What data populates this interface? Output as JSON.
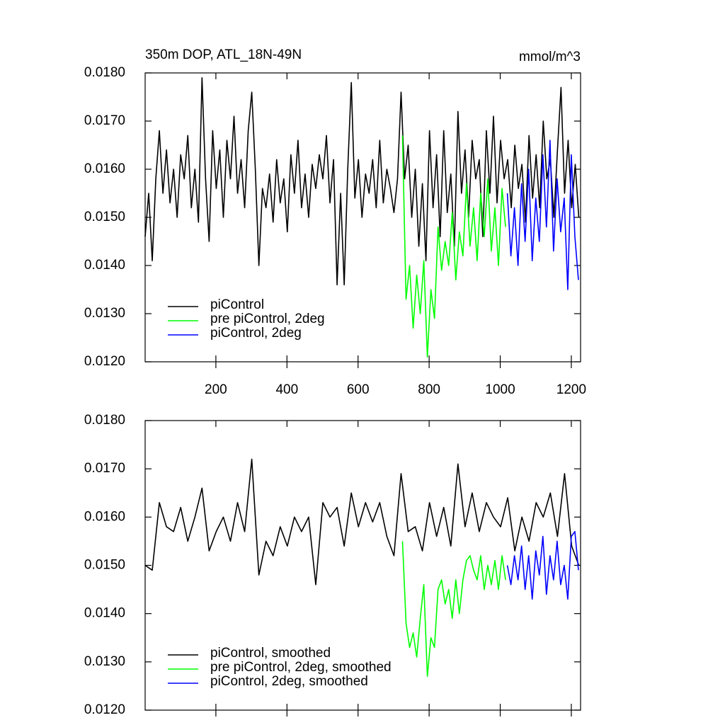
{
  "chart_data": [
    {
      "type": "line",
      "title": "350m DOP, ATL_18N-49N",
      "units_label": "mmol/m^3",
      "xlim": [
        1,
        1226
      ],
      "ylim": [
        0.012,
        0.018
      ],
      "xticks": [
        200,
        400,
        600,
        800,
        1000,
        1200
      ],
      "xtick_labels": true,
      "yticks": [
        {
          "value": 0.012,
          "label": "0.0120"
        },
        {
          "value": 0.013,
          "label": "0.0130"
        },
        {
          "value": 0.014,
          "label": "0.0140"
        },
        {
          "value": 0.015,
          "label": "0.0150"
        },
        {
          "value": 0.016,
          "label": "0.0160"
        },
        {
          "value": 0.017,
          "label": "0.0170"
        },
        {
          "value": 0.018,
          "label": "0.0180"
        }
      ],
      "legend": "lower left",
      "series": [
        {
          "name": "piControl",
          "color": "#000000",
          "x": [
            1,
            11,
            21,
            31,
            41,
            51,
            61,
            71,
            81,
            91,
            101,
            111,
            121,
            131,
            141,
            151,
            161,
            171,
            181,
            191,
            201,
            211,
            221,
            231,
            241,
            251,
            261,
            271,
            281,
            291,
            301,
            311,
            321,
            331,
            341,
            351,
            361,
            371,
            381,
            391,
            401,
            411,
            421,
            431,
            441,
            451,
            461,
            471,
            481,
            491,
            501,
            511,
            521,
            531,
            541,
            551,
            561,
            571,
            581,
            591,
            601,
            611,
            621,
            631,
            641,
            651,
            661,
            671,
            681,
            691,
            701,
            711,
            721,
            731,
            741,
            751,
            761,
            771,
            781,
            791,
            801,
            811,
            821,
            831,
            841,
            851,
            861,
            871,
            881,
            891,
            901,
            911,
            921,
            931,
            941,
            951,
            961,
            971,
            981,
            991,
            1001,
            1011,
            1021,
            1031,
            1041,
            1051,
            1061,
            1071,
            1081,
            1091,
            1101,
            1111,
            1121,
            1131,
            1141,
            1151,
            1161,
            1171,
            1181,
            1191,
            1201,
            1211,
            1221
          ],
          "values": [
            0.0146,
            0.0155,
            0.0141,
            0.0158,
            0.0168,
            0.0155,
            0.0164,
            0.0153,
            0.016,
            0.015,
            0.0163,
            0.0158,
            0.0167,
            0.0152,
            0.016,
            0.0149,
            0.0179,
            0.0158,
            0.0145,
            0.0168,
            0.0156,
            0.0164,
            0.015,
            0.0166,
            0.0158,
            0.0171,
            0.0155,
            0.0162,
            0.0152,
            0.0168,
            0.0176,
            0.016,
            0.014,
            0.0156,
            0.0152,
            0.0159,
            0.0149,
            0.0162,
            0.0153,
            0.0158,
            0.0147,
            0.0163,
            0.0155,
            0.0166,
            0.0152,
            0.0159,
            0.015,
            0.0161,
            0.0156,
            0.0163,
            0.0158,
            0.0167,
            0.0153,
            0.0162,
            0.0136,
            0.0155,
            0.0136,
            0.016,
            0.0178,
            0.0154,
            0.0162,
            0.015,
            0.0159,
            0.0155,
            0.0162,
            0.0152,
            0.0166,
            0.0153,
            0.016,
            0.0156,
            0.0151,
            0.0158,
            0.0176,
            0.0158,
            0.0165,
            0.015,
            0.016,
            0.0144,
            0.0157,
            0.0141,
            0.0168,
            0.0152,
            0.0163,
            0.0146,
            0.0168,
            0.0151,
            0.0159,
            0.0144,
            0.0172,
            0.0155,
            0.0164,
            0.015,
            0.0166,
            0.0158,
            0.0162,
            0.0146,
            0.0168,
            0.0155,
            0.0171,
            0.0153,
            0.0166,
            0.0158,
            0.0162,
            0.0152,
            0.0165,
            0.0156,
            0.0161,
            0.0149,
            0.0167,
            0.0154,
            0.0163,
            0.0152,
            0.017,
            0.0158,
            0.0162,
            0.015,
            0.0164,
            0.0177,
            0.0155,
            0.0166,
            0.0152,
            0.0161,
            0.015
          ]
        },
        {
          "name": "pre piControl, 2deg",
          "color": "#00ff00",
          "x": [
            725,
            735,
            745,
            755,
            765,
            775,
            785,
            795,
            805,
            815,
            825,
            835,
            845,
            855,
            865,
            875,
            885,
            895,
            905,
            915,
            925,
            935,
            945,
            955,
            965,
            975,
            985,
            995,
            1005,
            1015
          ],
          "values": [
            0.0167,
            0.0133,
            0.014,
            0.0127,
            0.0138,
            0.013,
            0.0141,
            0.0121,
            0.0135,
            0.0129,
            0.0148,
            0.0139,
            0.0145,
            0.014,
            0.0151,
            0.0137,
            0.0147,
            0.0142,
            0.0157,
            0.0144,
            0.0152,
            0.0141,
            0.0155,
            0.0146,
            0.0158,
            0.0143,
            0.0152,
            0.014,
            0.0156,
            0.0148
          ]
        },
        {
          "name": "piControl, 2deg",
          "color": "#0000ff",
          "x": [
            1020,
            1030,
            1040,
            1050,
            1060,
            1070,
            1080,
            1090,
            1100,
            1110,
            1120,
            1130,
            1140,
            1150,
            1160,
            1170,
            1180,
            1190,
            1200,
            1210,
            1220
          ],
          "values": [
            0.0155,
            0.0142,
            0.0152,
            0.014,
            0.0157,
            0.0145,
            0.016,
            0.0141,
            0.0154,
            0.0145,
            0.0163,
            0.0148,
            0.0166,
            0.0143,
            0.0158,
            0.0147,
            0.0154,
            0.0135,
            0.0163,
            0.0146,
            0.0137
          ]
        }
      ]
    },
    {
      "type": "line",
      "xlim": [
        1,
        1226
      ],
      "ylim": [
        0.012,
        0.018
      ],
      "xticks": [
        200,
        400,
        600,
        800,
        1000,
        1200
      ],
      "xtick_labels": false,
      "yticks": [
        {
          "value": 0.012,
          "label": "0.0120"
        },
        {
          "value": 0.013,
          "label": "0.0130"
        },
        {
          "value": 0.014,
          "label": "0.0140"
        },
        {
          "value": 0.015,
          "label": "0.0150"
        },
        {
          "value": 0.016,
          "label": "0.0160"
        },
        {
          "value": 0.017,
          "label": "0.0170"
        },
        {
          "value": 0.018,
          "label": "0.0180"
        }
      ],
      "legend": "lower left",
      "series": [
        {
          "name": "piControl, smoothed",
          "color": "#000000",
          "x": [
            1,
            21,
            41,
            61,
            81,
            101,
            121,
            141,
            161,
            181,
            201,
            221,
            241,
            261,
            281,
            301,
            321,
            341,
            361,
            381,
            401,
            421,
            441,
            461,
            481,
            501,
            521,
            541,
            561,
            581,
            601,
            621,
            641,
            661,
            681,
            701,
            721,
            741,
            761,
            781,
            801,
            821,
            841,
            861,
            881,
            901,
            921,
            941,
            961,
            981,
            1001,
            1021,
            1041,
            1061,
            1081,
            1101,
            1121,
            1141,
            1161,
            1181,
            1201,
            1221
          ],
          "values": [
            0.015,
            0.0149,
            0.0163,
            0.0158,
            0.0157,
            0.0162,
            0.0155,
            0.016,
            0.0166,
            0.0153,
            0.0157,
            0.016,
            0.0155,
            0.0163,
            0.0157,
            0.0172,
            0.0148,
            0.0155,
            0.0152,
            0.0158,
            0.0154,
            0.016,
            0.0157,
            0.016,
            0.0146,
            0.0163,
            0.016,
            0.0162,
            0.0154,
            0.0165,
            0.0158,
            0.0163,
            0.0159,
            0.0163,
            0.0156,
            0.0152,
            0.0169,
            0.0157,
            0.0158,
            0.0153,
            0.0163,
            0.0156,
            0.0162,
            0.0154,
            0.0171,
            0.0158,
            0.0165,
            0.0157,
            0.0163,
            0.016,
            0.0158,
            0.0164,
            0.0153,
            0.016,
            0.0155,
            0.0163,
            0.016,
            0.0165,
            0.0156,
            0.0169,
            0.0154,
            0.015
          ]
        },
        {
          "name": "pre piControl, 2deg, smoothed",
          "color": "#00ff00",
          "x": [
            725,
            735,
            745,
            755,
            765,
            775,
            785,
            795,
            805,
            815,
            825,
            835,
            845,
            855,
            865,
            875,
            885,
            895,
            905,
            915,
            925,
            935,
            945,
            955,
            965,
            975,
            985,
            995,
            1005,
            1015
          ],
          "values": [
            0.0155,
            0.0138,
            0.0133,
            0.0136,
            0.0131,
            0.0139,
            0.0146,
            0.0127,
            0.0135,
            0.0133,
            0.0145,
            0.0147,
            0.0142,
            0.0145,
            0.0139,
            0.0147,
            0.014,
            0.0147,
            0.0151,
            0.0152,
            0.0149,
            0.0147,
            0.0152,
            0.0145,
            0.015,
            0.0146,
            0.0151,
            0.0145,
            0.0152,
            0.0147
          ]
        },
        {
          "name": "piControl, 2deg, smoothed",
          "color": "#0000ff",
          "x": [
            1020,
            1030,
            1040,
            1050,
            1060,
            1070,
            1080,
            1090,
            1100,
            1110,
            1120,
            1130,
            1140,
            1150,
            1160,
            1170,
            1180,
            1190,
            1200,
            1210,
            1220
          ],
          "values": [
            0.015,
            0.0146,
            0.0152,
            0.0147,
            0.0154,
            0.0145,
            0.0152,
            0.0143,
            0.0153,
            0.0148,
            0.0156,
            0.0144,
            0.0152,
            0.0147,
            0.0155,
            0.0146,
            0.015,
            0.0143,
            0.0156,
            0.0157,
            0.0149
          ]
        }
      ]
    }
  ]
}
